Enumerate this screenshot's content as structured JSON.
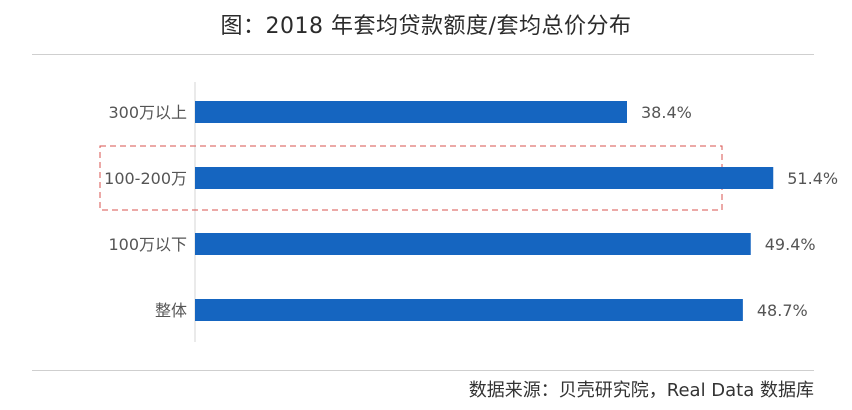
{
  "chart_data": {
    "type": "bar",
    "orientation": "horizontal",
    "title": "图：2018 年套均贷款额度/套均总价分布",
    "categories": [
      "300万以上",
      "100-200万",
      "100万以下",
      "整体"
    ],
    "values": [
      38.4,
      51.4,
      49.4,
      48.7
    ],
    "value_labels": [
      "38.4%",
      "51.4%",
      "49.4%",
      "48.7%"
    ],
    "unit": "%",
    "xlim": [
      0,
      64
    ],
    "highlighted_category": "100-200万",
    "grid": false,
    "legend": "none",
    "bar_color": "#1565c0",
    "highlight_border_color": "#d9534f",
    "label_color": "#555555"
  },
  "source": "数据来源：贝壳研究院，Real Data 数据库"
}
